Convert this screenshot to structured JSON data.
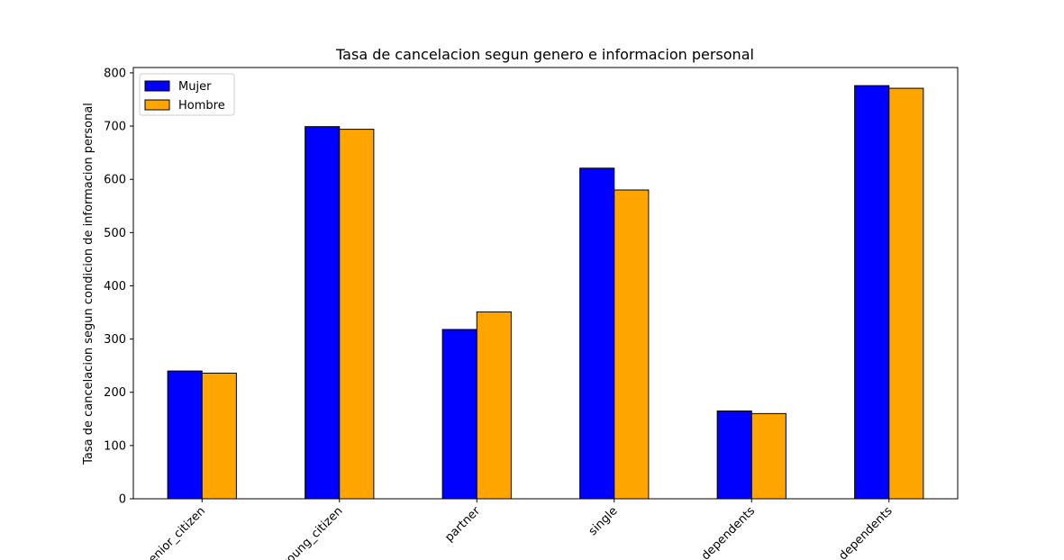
{
  "chart_data": {
    "type": "bar",
    "title": "Tasa de cancelacion segun genero e informacion personal",
    "xlabel": "",
    "ylabel": "Tasa de cancelacion segun condicion de informacion personal",
    "categories": [
      "senior_citizen",
      "young_citizen",
      "partner",
      "single",
      "dependents",
      "no_dependents"
    ],
    "series": [
      {
        "name": "Mujer",
        "color": "#0000ff",
        "values": [
          240,
          699,
          318,
          621,
          165,
          776
        ]
      },
      {
        "name": "Hombre",
        "color": "#ffa500",
        "values": [
          236,
          694,
          351,
          580,
          160,
          771
        ]
      }
    ],
    "ylim": [
      0,
      810
    ],
    "yticks": [
      0,
      100,
      200,
      300,
      400,
      500,
      600,
      700,
      800
    ],
    "grid": false,
    "legend_position": "top-left"
  }
}
